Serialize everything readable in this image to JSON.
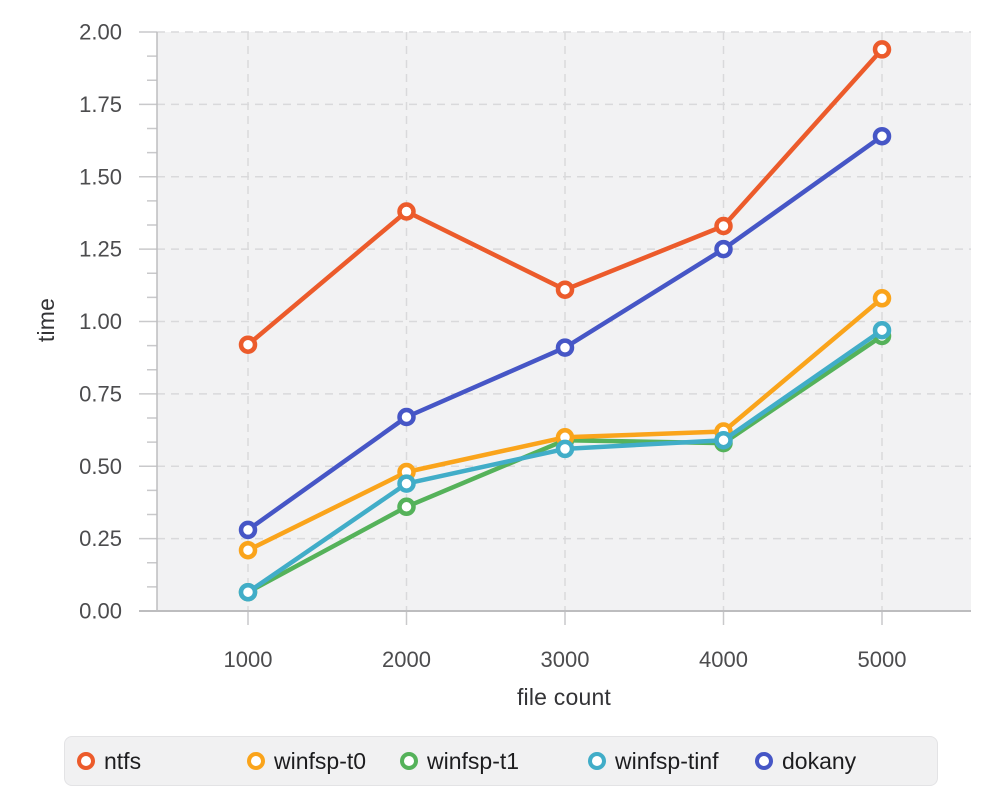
{
  "chart_data": {
    "type": "line",
    "title": "",
    "xlabel": "file count",
    "ylabel": "time",
    "x": [
      1000,
      2000,
      3000,
      4000,
      5000
    ],
    "x_tick_labels": [
      "1000",
      "2000",
      "3000",
      "4000",
      "5000"
    ],
    "y_ticks": [
      "0.00",
      "0.25",
      "0.50",
      "0.75",
      "1.00",
      "1.25",
      "1.50",
      "1.75",
      "2.00"
    ],
    "ylim": [
      0,
      2
    ],
    "grid": "dashed",
    "plot_background": true,
    "marker": "open-circle",
    "legend_position": "bottom",
    "series": [
      {
        "name": "ntfs",
        "color": "#EC5B2B",
        "values": [
          0.92,
          1.38,
          1.11,
          1.33,
          1.94
        ]
      },
      {
        "name": "winfsp-t0",
        "color": "#FAA41B",
        "values": [
          0.21,
          0.48,
          0.6,
          0.62,
          1.08
        ]
      },
      {
        "name": "winfsp-t1",
        "color": "#55B25A",
        "values": [
          0.065,
          0.36,
          0.59,
          0.58,
          0.95
        ]
      },
      {
        "name": "winfsp-tinf",
        "color": "#41ADC8",
        "values": [
          0.065,
          0.44,
          0.56,
          0.59,
          0.97
        ]
      },
      {
        "name": "dokany",
        "color": "#4656C6",
        "values": [
          0.28,
          0.67,
          0.91,
          1.25,
          1.64
        ]
      }
    ],
    "draw_order": [
      0,
      2,
      1,
      3,
      4
    ]
  },
  "colors": {
    "figure_bg": "#ffffff",
    "plot_bg": "#f2f2f3",
    "grid": "#d9d9db",
    "tick": "#c9c9cb",
    "axis_line": "#bdbdbf",
    "tick_label": "#4c4c4e",
    "axis_title": "#333336",
    "legend_bg": "#f1f1f2",
    "legend_border": "#e3e3e5",
    "legend_text": "#1d1d1f"
  }
}
